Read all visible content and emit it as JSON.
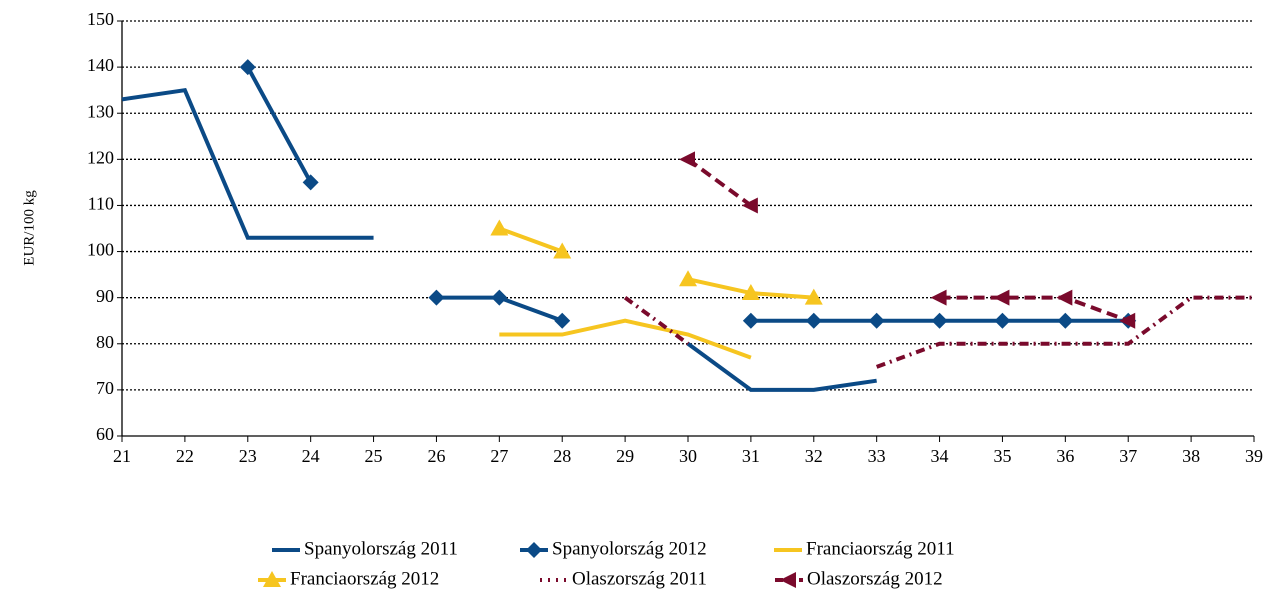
{
  "chart_data": {
    "type": "line",
    "y_label": "EUR/100 kg",
    "x": [
      21,
      22,
      23,
      24,
      25,
      26,
      27,
      28,
      29,
      30,
      31,
      32,
      33,
      34,
      35,
      36,
      37,
      38,
      39
    ],
    "xlim": [
      21,
      39
    ],
    "xticks": [
      21,
      22,
      23,
      24,
      25,
      26,
      27,
      28,
      29,
      30,
      31,
      32,
      33,
      34,
      35,
      36,
      37,
      38,
      39
    ],
    "ylim": [
      60,
      150
    ],
    "yticks": [
      60,
      70,
      80,
      90,
      100,
      110,
      120,
      130,
      140,
      150
    ],
    "grid": true,
    "legend": "bottom",
    "series": [
      {
        "name": "Spanyolország 2011",
        "color": "#0b4a86",
        "marker": "none",
        "dash": "solid",
        "values": [
          133,
          135,
          103,
          103,
          103,
          null,
          null,
          null,
          null,
          80,
          70,
          70,
          72,
          null,
          null,
          null,
          null,
          null,
          null
        ]
      },
      {
        "name": "Spanyolország 2012",
        "color": "#0b4a86",
        "marker": "diamond",
        "dash": "solid",
        "values": [
          null,
          null,
          140,
          115,
          null,
          90,
          90,
          85,
          null,
          null,
          85,
          85,
          85,
          85,
          85,
          85,
          85,
          null,
          null
        ]
      },
      {
        "name": "Franciaország 2011",
        "color": "#f6c520",
        "marker": "none",
        "dash": "solid",
        "values": [
          null,
          null,
          null,
          null,
          null,
          null,
          82,
          82,
          85,
          82,
          77,
          null,
          null,
          null,
          null,
          null,
          null,
          null,
          null
        ]
      },
      {
        "name": "Franciaország 2012",
        "color": "#f6c520",
        "marker": "triangle",
        "dash": "solid",
        "values": [
          null,
          null,
          null,
          null,
          null,
          null,
          105,
          100,
          null,
          94,
          91,
          90,
          null,
          null,
          null,
          null,
          null,
          null,
          null
        ]
      },
      {
        "name": "Olaszország 2011",
        "color": "#7a0a2c",
        "marker": "none",
        "dash": "dashdot",
        "values": [
          null,
          null,
          null,
          null,
          null,
          null,
          null,
          null,
          90,
          80,
          null,
          null,
          75,
          80,
          80,
          80,
          80,
          90,
          90
        ]
      },
      {
        "name": "Olaszország 2012",
        "color": "#7a0a2c",
        "marker": "left-triangle",
        "dash": "dashed",
        "values": [
          null,
          null,
          null,
          null,
          null,
          null,
          null,
          null,
          null,
          120,
          110,
          null,
          null,
          90,
          90,
          90,
          85,
          null,
          null
        ]
      }
    ]
  }
}
